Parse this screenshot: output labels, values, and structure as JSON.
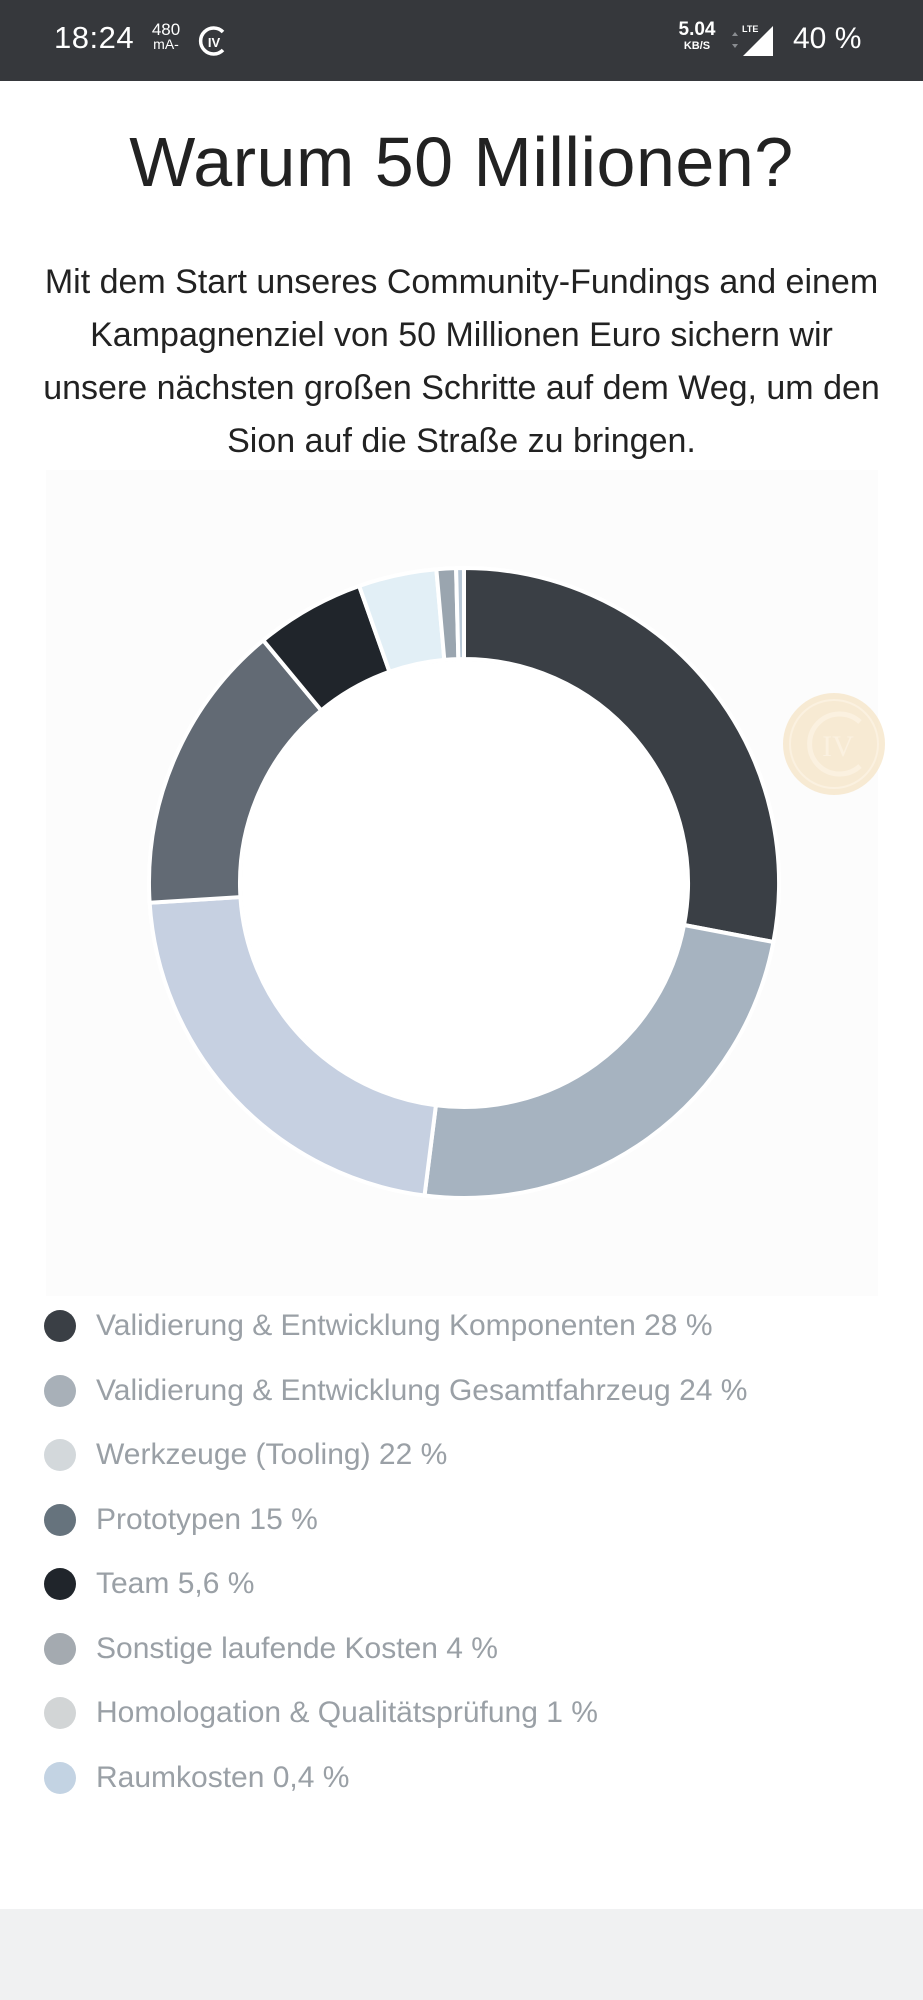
{
  "status_bar": {
    "time": "18:24",
    "current_value": "480",
    "current_unit": "mA-",
    "speed_value": "5.04",
    "speed_unit": "KB/S",
    "network": "LTE",
    "battery": "40 %",
    "logo_text": "IV"
  },
  "page": {
    "title": "Warum 50 Millionen?",
    "intro": "Mit dem Start unseres Community-Fundings and einem Kampagnenziel von 50 Millionen Euro sichern wir unsere nächsten großen Schritte auf dem Weg, um den Sion auf die Straße zu bringen."
  },
  "watermark": {
    "text": "IV"
  },
  "chart_data": {
    "type": "pie",
    "donut": true,
    "start_angle_deg": 0,
    "categories": [
      "Validierung & Entwicklung Komponenten",
      "Validierung & Entwicklung Gesamtfahrzeug",
      "Werkzeuge (Tooling)",
      "Prototypen",
      "Team",
      "Sonstige laufende Kosten",
      "Homologation & Qualitätsprüfung",
      "Raumkosten"
    ],
    "values": [
      28,
      24,
      22,
      15,
      5.6,
      4,
      1,
      0.4
    ],
    "unit": "%",
    "colors": [
      "#3a3f45",
      "#a6b3c0",
      "#c6d0e1",
      "#626a74",
      "#20252b",
      "#e2eff6",
      "#9aa5af",
      "#b7c7d6"
    ],
    "legend": [
      {
        "label": "Validierung & Entwicklung Komponenten 28 %",
        "color": "#3a3f45"
      },
      {
        "label": "Validierung & Entwicklung Gesamtfahrzeug 24 %",
        "color": "#a8b0b8"
      },
      {
        "label": "Werkzeuge (Tooling) 22 %",
        "color": "#d3d8db"
      },
      {
        "label": "Prototypen 15 %",
        "color": "#66737d"
      },
      {
        "label": "Team 5,6 %",
        "color": "#20252b"
      },
      {
        "label": "Sonstige laufende Kosten 4 %",
        "color": "#a4aab0"
      },
      {
        "label": "Homologation & Qualitätsprüfung 1 %",
        "color": "#d2d5d6"
      },
      {
        "label": "Raumkosten 0,4 %",
        "color": "#c3d3e3"
      }
    ]
  }
}
